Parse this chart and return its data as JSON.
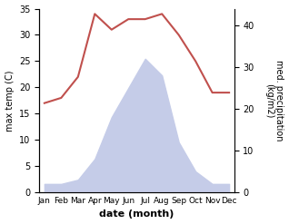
{
  "months": [
    "Jan",
    "Feb",
    "Mar",
    "Apr",
    "May",
    "Jun",
    "Jul",
    "Aug",
    "Sep",
    "Oct",
    "Nov",
    "Dec"
  ],
  "temperature": [
    17,
    18,
    22,
    34,
    31,
    33,
    33,
    34,
    30,
    25,
    19,
    19
  ],
  "precipitation": [
    2,
    2,
    3,
    8,
    18,
    25,
    32,
    28,
    12,
    5,
    2,
    2
  ],
  "temp_color": "#c0504d",
  "precip_fill_color": "#c5cce8",
  "ylabel_left": "max temp (C)",
  "ylabel_right": "med. precipitation\n(kg/m2)",
  "xlabel": "date (month)",
  "ylim_left": [
    0,
    35
  ],
  "ylim_right": [
    0,
    44
  ],
  "yticks_left": [
    0,
    5,
    10,
    15,
    20,
    25,
    30,
    35
  ],
  "yticks_right": [
    0,
    10,
    20,
    30,
    40
  ],
  "background_color": "#ffffff"
}
